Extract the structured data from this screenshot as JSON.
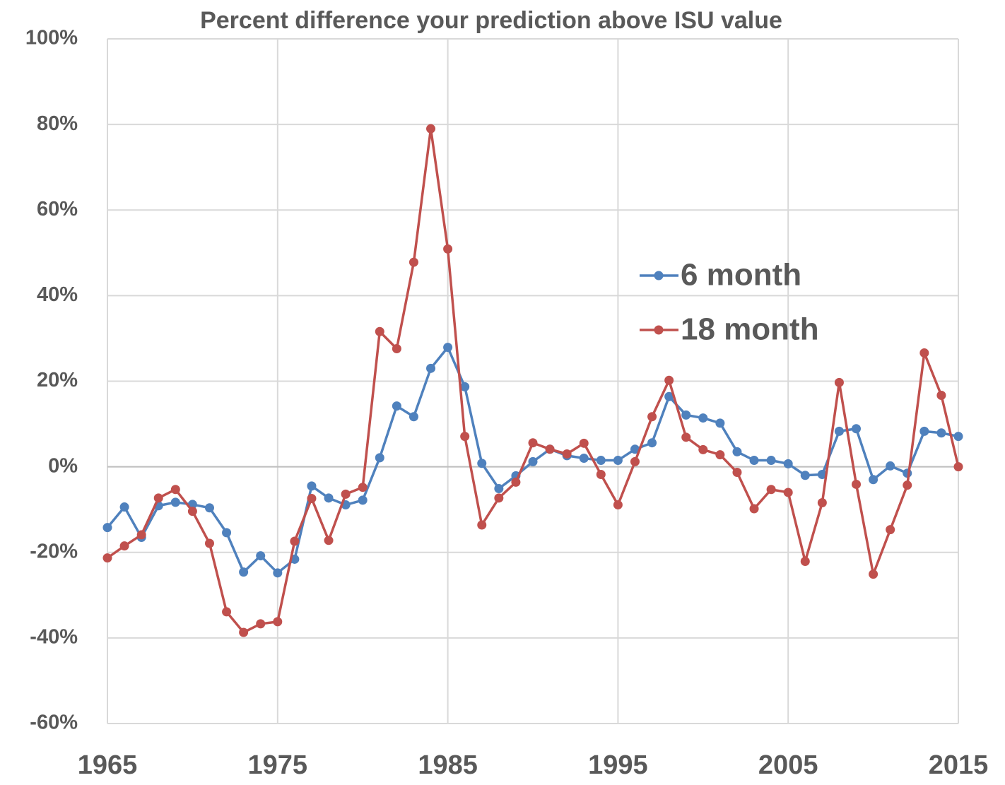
{
  "chart_data": {
    "type": "line",
    "title": "Percent difference your prediction above ISU value",
    "x": [
      1965,
      1966,
      1967,
      1968,
      1969,
      1970,
      1971,
      1972,
      1973,
      1974,
      1975,
      1976,
      1977,
      1978,
      1979,
      1980,
      1981,
      1982,
      1983,
      1984,
      1985,
      1986,
      1987,
      1988,
      1989,
      1990,
      1991,
      1992,
      1993,
      1994,
      1995,
      1996,
      1997,
      1998,
      1999,
      2000,
      2001,
      2002,
      2003,
      2004,
      2005,
      2006,
      2007,
      2008,
      2009,
      2010,
      2011,
      2012,
      2013,
      2014,
      2015
    ],
    "series": [
      {
        "name": "6 month",
        "color": "#4f81bd",
        "values": [
          -14.2,
          -9.4,
          -16.5,
          -9.1,
          -8.3,
          -8.8,
          -9.6,
          -15.4,
          -24.6,
          -20.8,
          -24.8,
          -21.6,
          -4.5,
          -7.3,
          -8.9,
          -7.8,
          2.1,
          14.2,
          11.7,
          23.0,
          27.9,
          18.7,
          0.8,
          -5.1,
          -2.1,
          1.2,
          4.1,
          2.6,
          2.0,
          1.5,
          1.5,
          4.1,
          5.6,
          16.4,
          12.1,
          11.4,
          10.2,
          3.5,
          1.5,
          1.5,
          0.7,
          -2.0,
          -1.8,
          8.3,
          8.9,
          -3.0,
          0.2,
          -1.5,
          8.3,
          7.9,
          7.1
        ]
      },
      {
        "name": "18 month",
        "color": "#c0504d",
        "values": [
          -21.3,
          -18.5,
          -15.9,
          -7.3,
          -5.3,
          -10.4,
          -17.9,
          -33.9,
          -38.7,
          -36.7,
          -36.2,
          -17.4,
          -7.4,
          -17.2,
          -6.4,
          -4.8,
          31.6,
          27.6,
          47.8,
          79.0,
          50.9,
          7.1,
          -13.6,
          -7.3,
          -3.6,
          5.6,
          4.1,
          3.0,
          5.5,
          -1.8,
          -8.9,
          1.2,
          11.7,
          20.2,
          6.9,
          4.0,
          2.8,
          -1.3,
          -9.8,
          -5.3,
          -6.0,
          -22.1,
          -8.4,
          19.7,
          -4.1,
          -25.1,
          -14.7,
          -4.3,
          26.6,
          16.7,
          0
        ]
      }
    ],
    "xlim": [
      1965,
      2015
    ],
    "xticks": [
      1965,
      1975,
      1985,
      1995,
      2005,
      2015
    ],
    "ylim": [
      -60,
      100
    ],
    "yticks": [
      {
        "value": -60,
        "label": "-60%"
      },
      {
        "value": -40,
        "label": "-40%"
      },
      {
        "value": -20,
        "label": "-20%"
      },
      {
        "value": 0,
        "label": "0%"
      },
      {
        "value": 20,
        "label": "20%"
      },
      {
        "value": 40,
        "label": "40%"
      },
      {
        "value": 60,
        "label": "60%"
      },
      {
        "value": 80,
        "label": "80%"
      },
      {
        "value": 100,
        "label": "100%"
      }
    ],
    "grid": true,
    "legend": "right"
  }
}
